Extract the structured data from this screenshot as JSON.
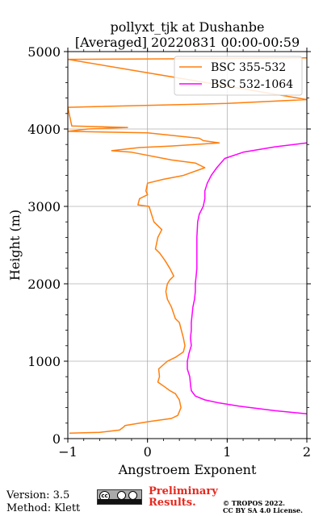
{
  "chart_data": {
    "type": "line",
    "title": "pollyxt_tjk at Dushanbe",
    "subtitle": "[Averaged] 20220831 00:00-00:59",
    "xlabel": "Angstroem Exponent",
    "ylabel": "Height (m)",
    "xlim": [
      -1,
      2
    ],
    "ylim": [
      0,
      5000
    ],
    "xticks": [
      "−1",
      "0",
      "1",
      "2"
    ],
    "yticks": [
      "0",
      "1000",
      "2000",
      "3000",
      "4000",
      "5000"
    ],
    "grid": true,
    "legend_position": "top-right",
    "series": [
      {
        "name": "BSC 355-532",
        "color": "#ff7f0e",
        "points": [
          [
            -0.98,
            70
          ],
          [
            -0.6,
            80
          ],
          [
            -0.35,
            110
          ],
          [
            -0.3,
            150
          ],
          [
            -0.28,
            170
          ],
          [
            0.02,
            220
          ],
          [
            0.3,
            260
          ],
          [
            0.38,
            300
          ],
          [
            0.42,
            400
          ],
          [
            0.4,
            500
          ],
          [
            0.35,
            580
          ],
          [
            0.28,
            620
          ],
          [
            0.2,
            680
          ],
          [
            0.13,
            730
          ],
          [
            0.15,
            800
          ],
          [
            0.14,
            900
          ],
          [
            0.25,
            1000
          ],
          [
            0.35,
            1050
          ],
          [
            0.45,
            1120
          ],
          [
            0.47,
            1200
          ],
          [
            0.45,
            1300
          ],
          [
            0.4,
            1500
          ],
          [
            0.35,
            1550
          ],
          [
            0.3,
            1700
          ],
          [
            0.25,
            1800
          ],
          [
            0.23,
            1900
          ],
          [
            0.25,
            2000
          ],
          [
            0.28,
            2050
          ],
          [
            0.33,
            2100
          ],
          [
            0.28,
            2200
          ],
          [
            0.22,
            2300
          ],
          [
            0.15,
            2400
          ],
          [
            0.1,
            2450
          ],
          [
            0.13,
            2600
          ],
          [
            0.18,
            2700
          ],
          [
            0.08,
            2800
          ],
          [
            0.05,
            2900
          ],
          [
            0.02,
            3000
          ],
          [
            -0.12,
            3020
          ],
          [
            -0.1,
            3100
          ],
          [
            0.0,
            3150
          ],
          [
            -0.02,
            3200
          ],
          [
            0.0,
            3300
          ],
          [
            0.2,
            3350
          ],
          [
            0.45,
            3400
          ],
          [
            0.72,
            3500
          ],
          [
            0.6,
            3560
          ],
          [
            0.3,
            3600
          ],
          [
            -0.2,
            3700
          ],
          [
            -0.45,
            3720
          ],
          [
            -0.1,
            3760
          ],
          [
            0.3,
            3780
          ],
          [
            0.9,
            3820
          ],
          [
            0.7,
            3850
          ],
          [
            0.65,
            3880
          ],
          [
            0.0,
            3950
          ],
          [
            -1.0,
            3970
          ],
          [
            -0.75,
            4000
          ],
          [
            -0.25,
            4020
          ],
          [
            -0.95,
            4040
          ],
          [
            -1.0,
            4280
          ],
          [
            1.0,
            4330
          ],
          [
            2.0,
            4380
          ],
          [
            -1.0,
            4900
          ],
          [
            0.0,
            4905
          ],
          [
            1.0,
            4910
          ],
          [
            2.0,
            4920
          ]
        ]
      },
      {
        "name": "BSC 532-1064",
        "color": "#ff00ff",
        "points": [
          [
            2.0,
            320
          ],
          [
            1.6,
            360
          ],
          [
            1.15,
            420
          ],
          [
            0.9,
            460
          ],
          [
            0.72,
            500
          ],
          [
            0.6,
            550
          ],
          [
            0.55,
            620
          ],
          [
            0.54,
            700
          ],
          [
            0.53,
            800
          ],
          [
            0.5,
            900
          ],
          [
            0.5,
            1000
          ],
          [
            0.52,
            1100
          ],
          [
            0.55,
            1200
          ],
          [
            0.54,
            1300
          ],
          [
            0.55,
            1400
          ],
          [
            0.55,
            1500
          ],
          [
            0.56,
            1600
          ],
          [
            0.57,
            1700
          ],
          [
            0.59,
            1800
          ],
          [
            0.6,
            1900
          ],
          [
            0.6,
            2000
          ],
          [
            0.61,
            2100
          ],
          [
            0.62,
            2200
          ],
          [
            0.62,
            2400
          ],
          [
            0.62,
            2600
          ],
          [
            0.63,
            2800
          ],
          [
            0.65,
            2900
          ],
          [
            0.7,
            3000
          ],
          [
            0.72,
            3100
          ],
          [
            0.72,
            3200
          ],
          [
            0.75,
            3300
          ],
          [
            0.8,
            3400
          ],
          [
            0.87,
            3500
          ],
          [
            0.97,
            3620
          ],
          [
            1.2,
            3700
          ],
          [
            1.6,
            3770
          ],
          [
            2.0,
            3820
          ]
        ]
      }
    ]
  },
  "footer": {
    "version": "Version: 3.5",
    "method": "Method: Klett",
    "preliminary_line1": "Preliminary",
    "preliminary_line2": "Results.",
    "tropos": "© TROPOS 2022.",
    "license": "CC BY SA 4.0 License.",
    "license_badge_text": "cc",
    "license_badge_icon": "cc-by-sa-icon"
  }
}
